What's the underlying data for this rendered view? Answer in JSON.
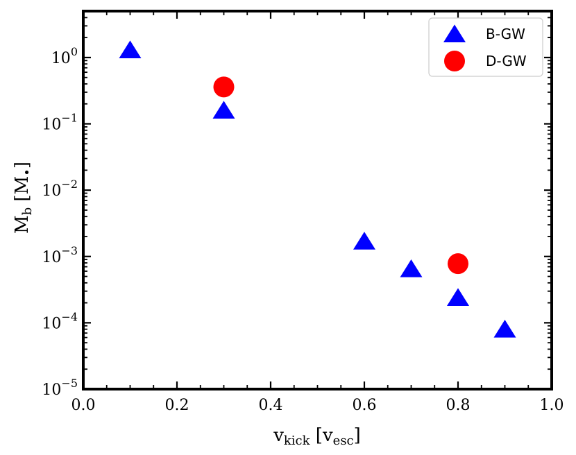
{
  "chart_data": {
    "type": "scatter",
    "xlabel": {
      "base": "v",
      "base_sub": "kick",
      "unit": "v",
      "unit_sub": "esc"
    },
    "ylabel": {
      "base": "M",
      "base_sub": "b",
      "unit": "M",
      "unit_sub": "•"
    },
    "xlim": [
      0.0,
      1.0
    ],
    "ylim_log10": [
      -5,
      0.7
    ],
    "yscale": "log",
    "x_ticks": [
      0.0,
      0.2,
      0.4,
      0.6,
      0.8,
      1.0
    ],
    "x_tick_labels": [
      "0.0",
      "0.2",
      "0.4",
      "0.6",
      "0.8",
      "1.0"
    ],
    "y_tick_exponents": [
      0,
      -1,
      -2,
      -3,
      -4,
      -5
    ],
    "y_tick_base": "10",
    "legend_position": "top-right",
    "series": [
      {
        "name": "B-GW",
        "marker": "triangle",
        "color": "#0000ff",
        "x": [
          0.1,
          0.3,
          0.6,
          0.7,
          0.8,
          0.9
        ],
        "y": [
          1.3,
          0.16,
          0.0017,
          0.00065,
          0.00024,
          8e-05
        ]
      },
      {
        "name": "D-GW",
        "marker": "circle",
        "color": "#ff0000",
        "x": [
          0.3,
          0.8
        ],
        "y": [
          0.36,
          0.00078
        ]
      }
    ]
  }
}
